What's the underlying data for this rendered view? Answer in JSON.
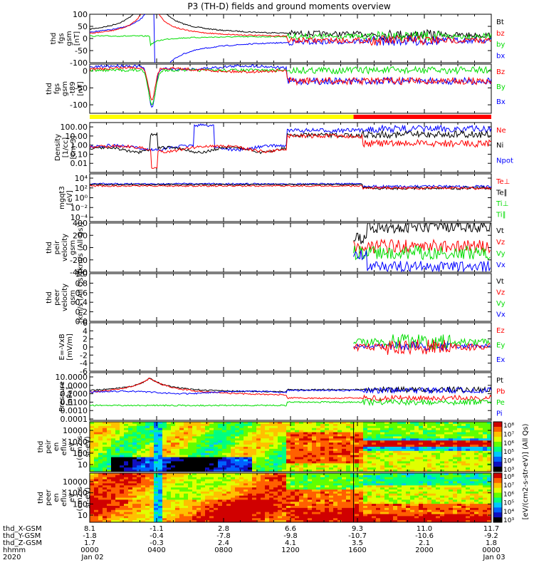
{
  "title": "P3 (TH-D) fields and ground moments overview",
  "colors": {
    "black": "#000000",
    "red": "#ff0000",
    "green": "#00dd00",
    "blue": "#0000ff",
    "yellow": "#ffff00"
  },
  "chart_data": [
    {
      "type": "line",
      "panel": "fgs",
      "ylabel": [
        "thd",
        "fgs",
        "gsm",
        "[nT]"
      ],
      "ylim": [
        -100,
        100
      ],
      "yticks": [
        100,
        50,
        0,
        -50,
        -100
      ],
      "legend": [
        {
          "label": "Bt",
          "color": "black"
        },
        {
          "label": "bz",
          "color": "red"
        },
        {
          "label": "by",
          "color": "green"
        },
        {
          "label": "bx",
          "color": "blue"
        }
      ]
    },
    {
      "type": "line",
      "panel": "fgs-t89",
      "ylabel": [
        "thd",
        "fgs",
        "gsm",
        "-t89",
        "[nT]"
      ],
      "ylim": [
        -125,
        20
      ],
      "yticks": [
        0,
        -50,
        -100
      ],
      "legend": [
        {
          "label": "Bz",
          "color": "red"
        },
        {
          "label": "By",
          "color": "green"
        },
        {
          "label": "Bx",
          "color": "blue"
        }
      ]
    },
    {
      "type": "line",
      "panel": "density",
      "ylabel": [
        "Density",
        "[1/cc]",
        "[cm-3]"
      ],
      "yscale": "log",
      "ylim": [
        0.001,
        300
      ],
      "yticks": [
        "100.00",
        "10.00",
        "1.00",
        "0.10",
        "0.01"
      ],
      "legend": [
        {
          "label": "Ne",
          "color": "red"
        },
        {
          "label": "Ni",
          "color": "black"
        },
        {
          "label": "Npot",
          "color": "blue"
        }
      ]
    },
    {
      "type": "line",
      "panel": "temperature",
      "ylabel": [
        "mgqt3",
        "[eV]"
      ],
      "yscale": "log",
      "yticks": [
        "10⁴",
        "10²",
        "10⁰",
        "10⁻²",
        "10⁻⁴"
      ],
      "legend": [
        {
          "label": "Te⊥",
          "color": "red"
        },
        {
          "label": "Te∥",
          "color": "black"
        },
        {
          "label": "Ti⊥",
          "color": "green"
        },
        {
          "label": "Ti∥",
          "color": "green"
        }
      ]
    },
    {
      "type": "line",
      "panel": "peir-velocity",
      "ylabel": [
        "thd",
        "peir",
        "velocity",
        "gsm",
        "[km/s (All Qs)]"
      ],
      "ylim": [
        -400,
        400
      ],
      "yticks": [
        400,
        200,
        0,
        -200,
        -400
      ],
      "legend": [
        {
          "label": "Vt",
          "color": "black"
        },
        {
          "label": "Vz",
          "color": "red"
        },
        {
          "label": "Vy",
          "color": "green"
        },
        {
          "label": "Vx",
          "color": "blue"
        }
      ]
    },
    {
      "type": "line",
      "panel": "peer-velocity",
      "ylabel": [
        "thd",
        "peer",
        "velocity",
        "gsm",
        "[km/s (All Qs)]"
      ],
      "ylim": [
        0,
        1
      ],
      "yticks": [
        "1.0",
        "0.8",
        "0.6",
        "0.4",
        "0.2",
        "0.0"
      ],
      "legend": [
        {
          "label": "Vt",
          "color": "black"
        },
        {
          "label": "Vz",
          "color": "red"
        },
        {
          "label": "Vy",
          "color": "green"
        },
        {
          "label": "Vx",
          "color": "blue"
        }
      ]
    },
    {
      "type": "line",
      "panel": "efield",
      "ylabel": [
        "E=-VxB",
        "[mV/m]"
      ],
      "ylim": [
        -6,
        6
      ],
      "yticks": [
        6,
        4,
        2,
        0,
        -2,
        -4,
        -6
      ],
      "legend": [
        {
          "label": "Ez",
          "color": "red"
        },
        {
          "label": "Ey",
          "color": "green"
        },
        {
          "label": "Ex",
          "color": "blue"
        }
      ]
    },
    {
      "type": "line",
      "panel": "pressure",
      "ylabel": [
        "Pressure",
        "[nPa]"
      ],
      "yscale": "log",
      "yticks": [
        "10.0000",
        "1.0000",
        "0.1000",
        "0.0100",
        "0.0010",
        "0.0001"
      ],
      "legend": [
        {
          "label": "Pt",
          "color": "black"
        },
        {
          "label": "Pb",
          "color": "red"
        },
        {
          "label": "Pe",
          "color": "green"
        },
        {
          "label": "Pi",
          "color": "blue"
        }
      ]
    },
    {
      "type": "heatmap",
      "panel": "peir-eflux",
      "ylabel": [
        "thd",
        "peir",
        "en",
        "eflux",
        "eV",
        "(cm2-s-",
        "sr-eV)"
      ],
      "yticks": [
        "10000",
        "1000",
        "100",
        "10"
      ],
      "colorbar": [
        "10⁸",
        "10⁷",
        "10⁶",
        "10⁵",
        "10⁴",
        "10³"
      ]
    },
    {
      "type": "heatmap",
      "panel": "peer-eflux",
      "ylabel": [
        "thd",
        "peer",
        "en",
        "eflux",
        "eV",
        "(cm2-s-",
        "sr-eV)"
      ],
      "yticks": [
        "10000",
        "1000",
        "100",
        "10"
      ],
      "colorbar": [
        "10⁸",
        "10⁷",
        "10⁶",
        "10⁵",
        "10⁴",
        "10³"
      ],
      "colorbar_label": "[eV/(cm2-s-str-eV)] (All Qs)"
    }
  ],
  "x_axis": {
    "row_labels": [
      "thd_X-GSM",
      "thd_Y-GSM",
      "thd_Z-GSM",
      "hhmm",
      "2020"
    ],
    "columns": [
      {
        "x": "8.1",
        "y": "-1.8",
        "z": "1.7",
        "hhmm": "0000",
        "date": "Jan 02"
      },
      {
        "x": "-1.1",
        "y": "-0.4",
        "z": "-0.3",
        "hhmm": "0400",
        "date": ""
      },
      {
        "x": "2.8",
        "y": "-7.8",
        "z": "2.4",
        "hhmm": "0800",
        "date": ""
      },
      {
        "x": "6.6",
        "y": "-9.8",
        "z": "4.1",
        "hhmm": "1200",
        "date": ""
      },
      {
        "x": "9.3",
        "y": "-10.7",
        "z": "3.5",
        "hhmm": "1600",
        "date": ""
      },
      {
        "x": "11.0",
        "y": "-10.6",
        "z": "2.1",
        "hhmm": "2000",
        "date": ""
      },
      {
        "x": "11.7",
        "y": "-9.2",
        "z": "1.8",
        "hhmm": "0000",
        "date": "Jan 03"
      }
    ]
  }
}
